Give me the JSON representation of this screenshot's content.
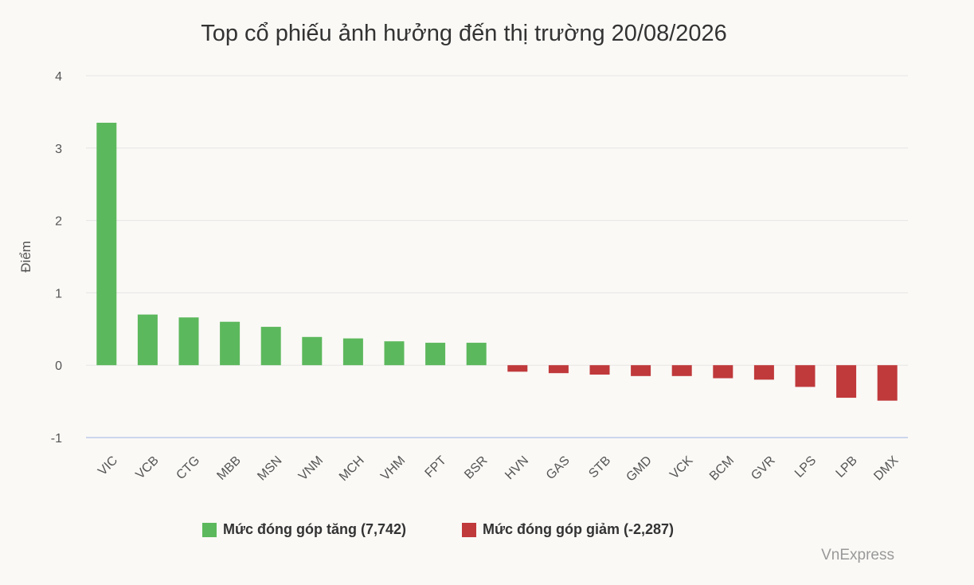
{
  "chart_data": {
    "type": "bar",
    "title": "Top cổ phiếu ảnh hưởng đến thị trường 20/08/2026",
    "ylabel": "Điểm",
    "ylim": [
      -1,
      4
    ],
    "yticks": [
      4,
      3,
      2,
      1,
      0,
      -1
    ],
    "grid": true,
    "legend_position": "bottom",
    "categories": [
      "VIC",
      "VCB",
      "CTG",
      "MBB",
      "MSN",
      "VNM",
      "MCH",
      "VHM",
      "FPT",
      "BSR",
      "HVN",
      "GAS",
      "STB",
      "GMD",
      "VCK",
      "BCM",
      "GVR",
      "LPS",
      "LPB",
      "DMX"
    ],
    "values": [
      3.35,
      0.7,
      0.66,
      0.6,
      0.53,
      0.39,
      0.37,
      0.33,
      0.31,
      0.31,
      -0.09,
      -0.11,
      -0.13,
      -0.15,
      -0.15,
      -0.18,
      -0.2,
      -0.3,
      -0.45,
      -0.49
    ],
    "series": [
      {
        "name": "Mức đóng góp tăng (7,742)",
        "color": "#5cb85c"
      },
      {
        "name": "Mức đóng góp giảm (-2,287)",
        "color": "#c0393b"
      }
    ]
  },
  "credit": "VnExpress"
}
